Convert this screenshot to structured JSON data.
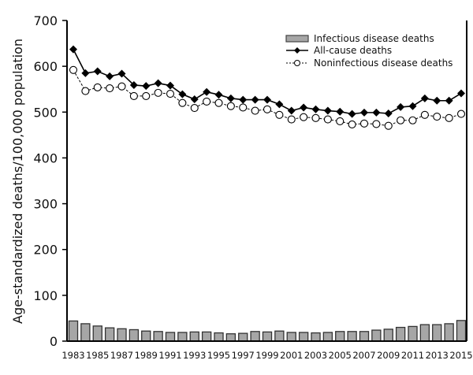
{
  "chart_data": {
    "type": "bar+line",
    "title": "",
    "xlabel": "",
    "ylabel": "Age-standardized deaths/100,000 population",
    "ylim": [
      0,
      700
    ],
    "yticks": [
      "0",
      "100",
      "200",
      "300",
      "400",
      "500",
      "600",
      "700"
    ],
    "ytick_values": [
      0,
      100,
      200,
      300,
      400,
      500,
      600,
      700
    ],
    "grid": false,
    "legend_position": "top-right",
    "x": [
      1983,
      1984,
      1985,
      1986,
      1987,
      1988,
      1989,
      1990,
      1991,
      1992,
      1993,
      1994,
      1995,
      1996,
      1997,
      1998,
      1999,
      2000,
      2001,
      2002,
      2003,
      2004,
      2005,
      2006,
      2007,
      2008,
      2009,
      2010,
      2011,
      2012,
      2013,
      2014,
      2015
    ],
    "xtick_labels": [
      "1983",
      "1985",
      "1987",
      "1989",
      "1991",
      "1993",
      "1995",
      "1997",
      "1999",
      "2001",
      "2003",
      "2005",
      "2007",
      "2009",
      "2011",
      "2013",
      "2015"
    ],
    "series": [
      {
        "name": "Infectious disease deaths",
        "kind": "bar",
        "color": "#a6a6a6",
        "values": [
          44,
          38,
          33,
          29,
          27,
          25,
          22,
          21,
          19,
          19,
          20,
          20,
          18,
          16,
          17,
          21,
          20,
          22,
          19,
          19,
          18,
          19,
          21,
          21,
          21,
          24,
          26,
          30,
          32,
          36,
          36,
          38,
          45
        ]
      },
      {
        "name": "All-cause deaths",
        "kind": "line",
        "marker": "filled-diamond",
        "line_style": "solid",
        "color": "#000000",
        "values": [
          637,
          585,
          589,
          578,
          584,
          559,
          557,
          563,
          558,
          539,
          528,
          544,
          538,
          530,
          527,
          527,
          527,
          517,
          503,
          510,
          506,
          503,
          501,
          496,
          499,
          499,
          497,
          511,
          513,
          530,
          525,
          525,
          541
        ]
      },
      {
        "name": "Noninfectious disease deaths",
        "kind": "line",
        "marker": "open-circle",
        "line_style": "dashed",
        "color": "#000000",
        "values": [
          592,
          546,
          554,
          552,
          556,
          535,
          535,
          542,
          540,
          520,
          509,
          523,
          520,
          513,
          510,
          503,
          506,
          494,
          484,
          489,
          487,
          484,
          480,
          473,
          475,
          474,
          470,
          482,
          482,
          494,
          490,
          487,
          496
        ]
      }
    ]
  }
}
